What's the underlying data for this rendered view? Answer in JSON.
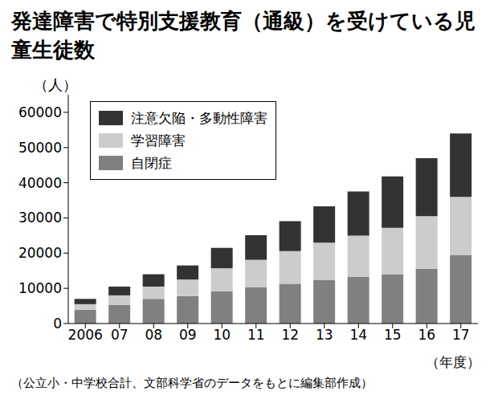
{
  "chart_data": {
    "type": "bar",
    "title": "発達障害で特別支援教育（通級）を受けている児童生徒数",
    "y_label": "（人）",
    "x_label": "（年度）",
    "source": "（公立小・中学校合計、文部科学省のデータをもとに編集部作成）",
    "categories": [
      "2006",
      "07",
      "08",
      "09",
      "10",
      "11",
      "12",
      "13",
      "14",
      "15",
      "16",
      "17"
    ],
    "series": [
      {
        "name": "自閉症",
        "color": "#808080",
        "values": [
          3900,
          5300,
          7000,
          7800,
          9100,
          10300,
          11300,
          12300,
          13300,
          14000,
          15500,
          19500
        ]
      },
      {
        "name": "学習障害",
        "color": "#cccccc",
        "values": [
          1600,
          2700,
          3500,
          4700,
          6600,
          7800,
          9300,
          10700,
          11700,
          13200,
          15000,
          16500
        ]
      },
      {
        "name": "注意欠陥・多動性障害",
        "color": "#333333",
        "values": [
          1500,
          2500,
          3500,
          4000,
          5800,
          7000,
          8500,
          10300,
          12500,
          14600,
          16500,
          18000
        ]
      }
    ],
    "ylim": [
      0,
      65000
    ],
    "yticks": [
      0,
      10000,
      20000,
      30000,
      40000,
      50000,
      60000
    ],
    "stacked": true,
    "legend": "upper left",
    "grid": false
  }
}
